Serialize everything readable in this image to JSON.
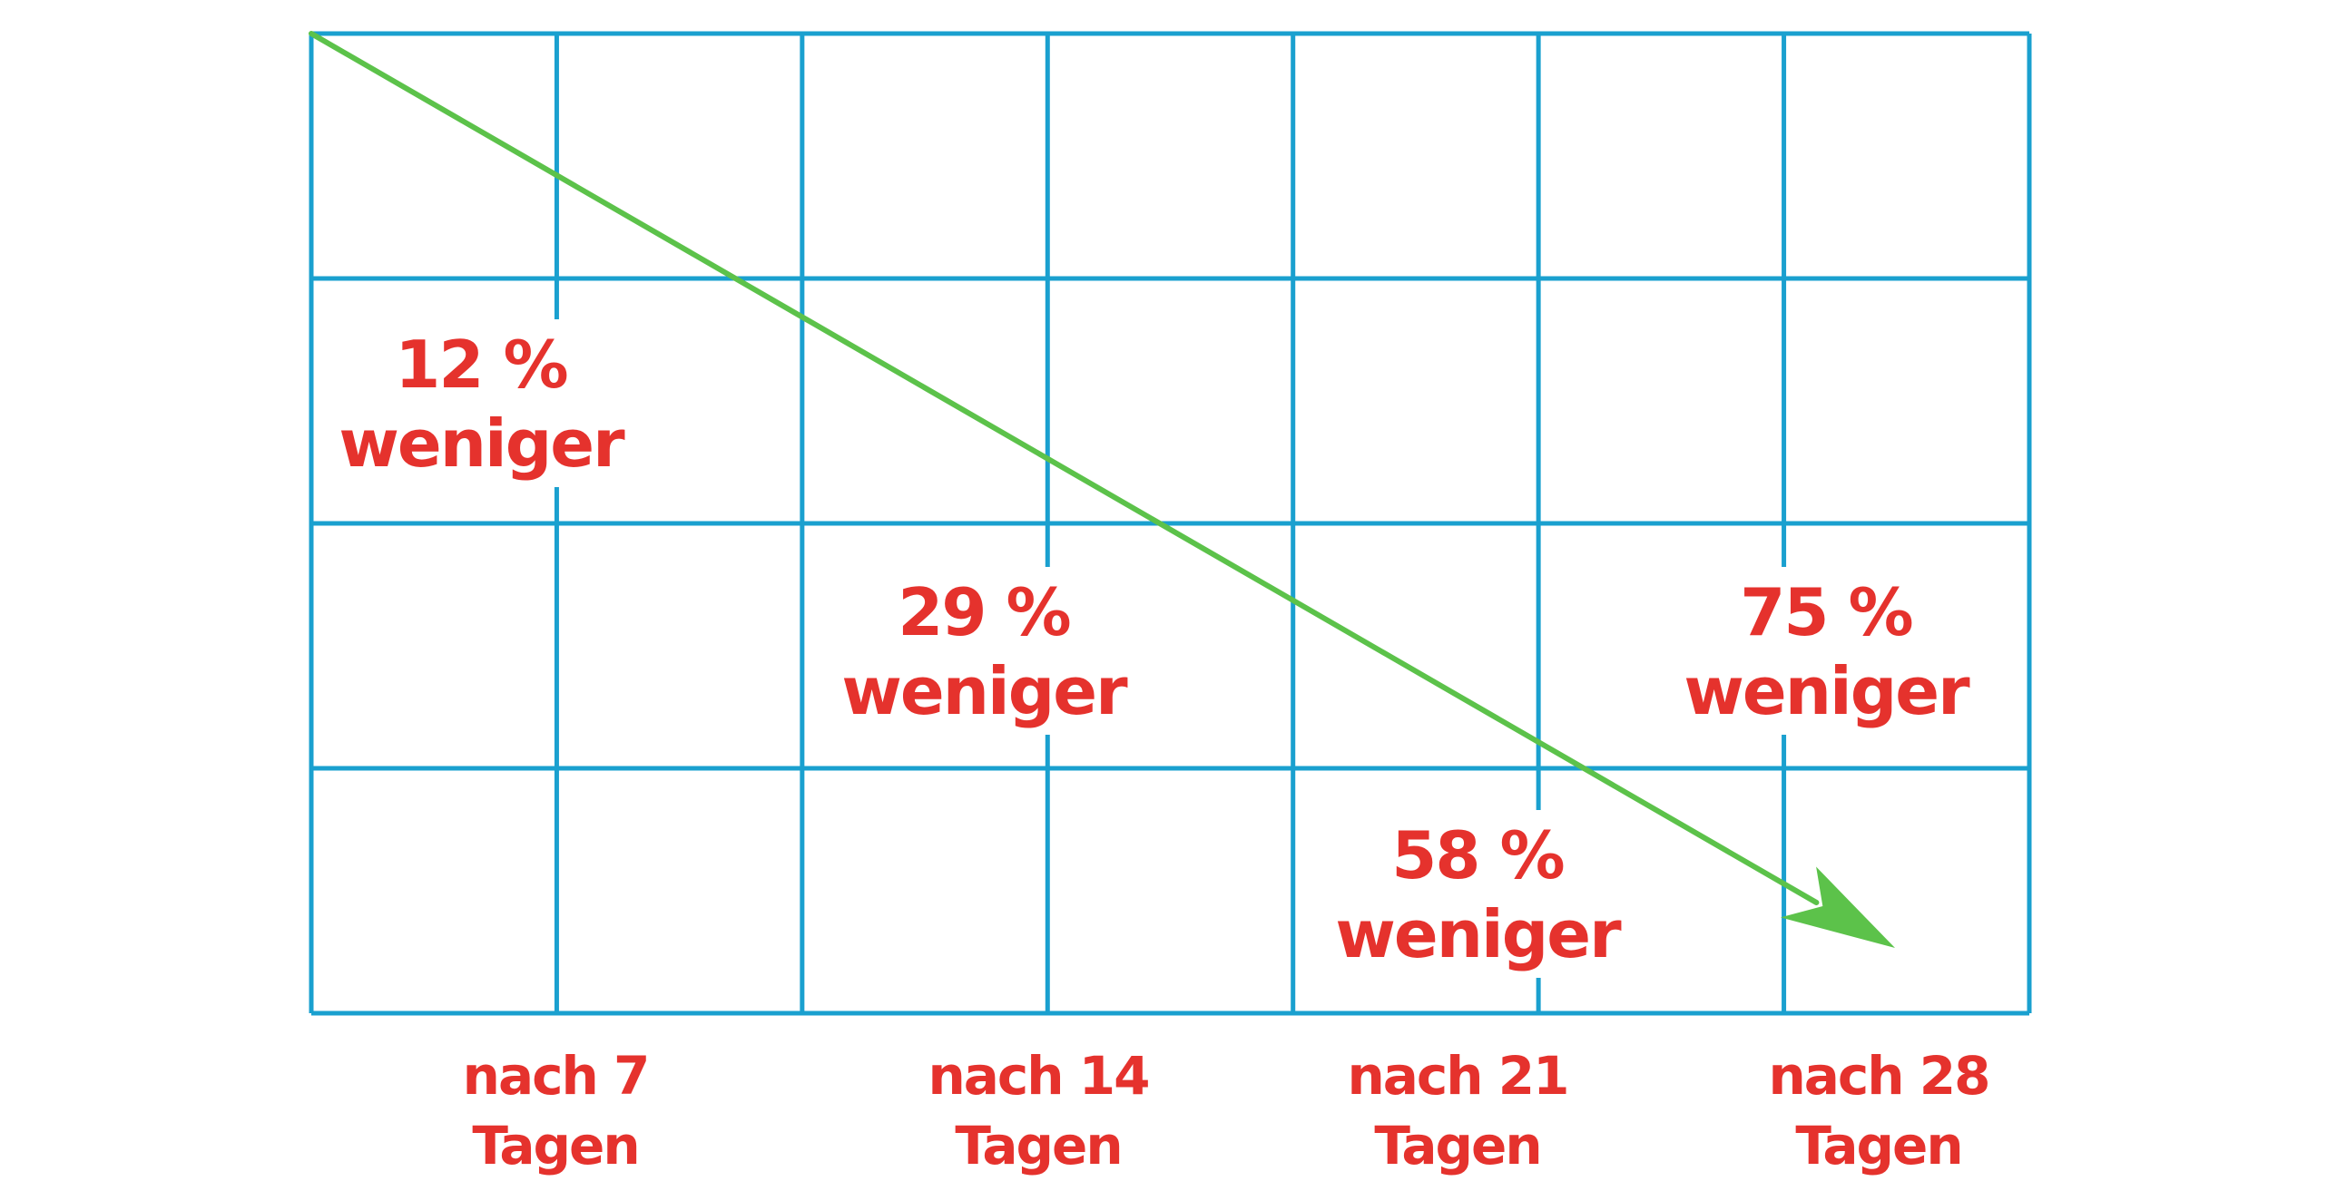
{
  "chart_data": {
    "type": "line",
    "title": "",
    "xlabel": "",
    "ylabel": "",
    "grid": true,
    "categories": [
      [
        "nach 7",
        "Tagen"
      ],
      [
        "nach 14",
        "Tagen"
      ],
      [
        "nach 21",
        "Tagen"
      ],
      [
        "nach 28",
        "Tagen"
      ]
    ],
    "data_labels": [
      [
        "12 %",
        "weniger"
      ],
      [
        "29 %",
        "weniger"
      ],
      [
        "58 %",
        "weniger"
      ],
      [
        "75 %",
        "weniger"
      ]
    ],
    "trend": "decreasing",
    "colors": {
      "grid": "#1aa0cf",
      "trend": "#5cc24a",
      "text": "#e5322d"
    }
  }
}
